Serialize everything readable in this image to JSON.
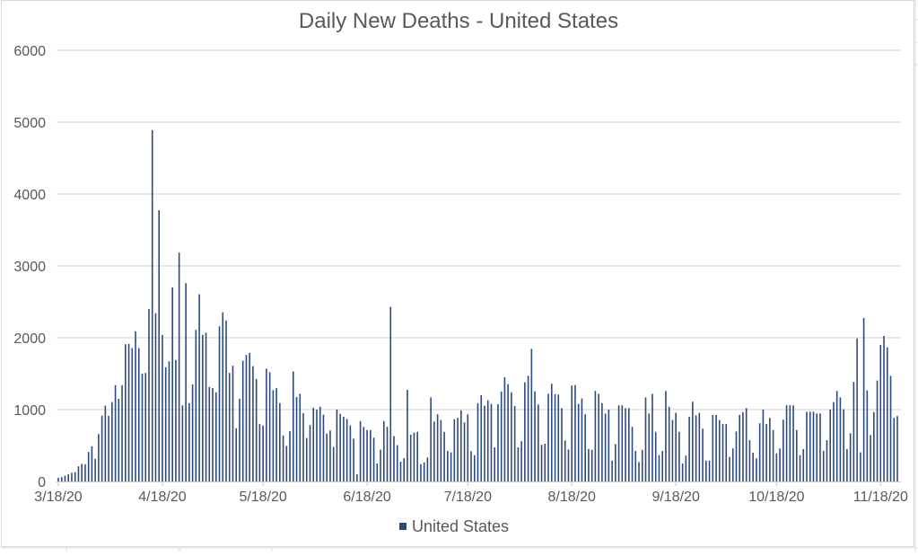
{
  "chart_data": {
    "type": "bar",
    "title": "Daily New Deaths - United States",
    "xlabel": "",
    "ylabel": "",
    "start_date": "3/18/20",
    "x_tick_labels": [
      "3/18/20",
      "4/18/20",
      "5/18/20",
      "6/18/20",
      "7/18/20",
      "8/18/20",
      "9/18/20",
      "10/18/20",
      "11/18/20"
    ],
    "x_tick_days": [
      0,
      31,
      61,
      92,
      122,
      153,
      184,
      214,
      245
    ],
    "y_ticks": [
      0,
      1000,
      2000,
      3000,
      4000,
      5000,
      6000
    ],
    "ylim": [
      0,
      6000
    ],
    "grid": true,
    "legend_position": "bottom",
    "series": [
      {
        "name": "United States",
        "color": "#2d4a7f",
        "values": [
          50,
          60,
          80,
          100,
          120,
          130,
          210,
          245,
          240,
          410,
          490,
          315,
          660,
          915,
          1055,
          915,
          1105,
          1340,
          1150,
          1340,
          1910,
          1915,
          1855,
          2090,
          1855,
          1500,
          1510,
          2400,
          4890,
          2340,
          3775,
          2040,
          1590,
          1670,
          2700,
          1690,
          3185,
          1060,
          2760,
          1090,
          1350,
          2110,
          2605,
          2040,
          2070,
          1315,
          1300,
          1240,
          2160,
          2355,
          2240,
          1510,
          1610,
          740,
          1150,
          1680,
          1760,
          1790,
          1605,
          1425,
          800,
          780,
          1570,
          1520,
          1270,
          1300,
          1090,
          640,
          495,
          700,
          1530,
          1175,
          1220,
          950,
          605,
          785,
          1025,
          1000,
          1040,
          930,
          665,
          710,
          480,
          1000,
          940,
          900,
          870,
          780,
          595,
          100,
          840,
          760,
          715,
          715,
          610,
          250,
          440,
          840,
          760,
          2430,
          630,
          505,
          275,
          325,
          1275,
          650,
          680,
          690,
          240,
          265,
          335,
          1170,
          835,
          935,
          855,
          690,
          425,
          405,
          865,
          885,
          990,
          820,
          935,
          420,
          365,
          1090,
          1200,
          1055,
          1130,
          1080,
          475,
          1075,
          1250,
          1450,
          1355,
          1240,
          1050,
          475,
          560,
          1380,
          1470,
          1845,
          1255,
          1070,
          510,
          525,
          1220,
          1360,
          1215,
          1210,
          1020,
          570,
          445,
          1335,
          1340,
          1080,
          1155,
          935,
          450,
          440,
          1260,
          1220,
          1090,
          945,
          1000,
          290,
          520,
          1060,
          1060,
          1020,
          1020,
          760,
          425,
          270,
          440,
          1170,
          945,
          1220,
          690,
          365,
          425,
          1260,
          1040,
          855,
          955,
          690,
          250,
          360,
          900,
          1110,
          920,
          955,
          735,
          290,
          290,
          925,
          925,
          855,
          800,
          800,
          340,
          460,
          695,
          925,
          965,
          1020,
          575,
          400,
          320,
          810,
          1000,
          800,
          885,
          715,
          390,
          460,
          860,
          1060,
          1060,
          1060,
          715,
          365,
          450,
          970,
          970,
          970,
          945,
          945,
          425,
          575,
          1000,
          1105,
          1260,
          1170,
          1005,
          450,
          670,
          1385,
          1990,
          405,
          2275,
          1265,
          645,
          965,
          1405,
          1900,
          2025,
          1865,
          1470,
          885,
          910
        ]
      }
    ]
  }
}
